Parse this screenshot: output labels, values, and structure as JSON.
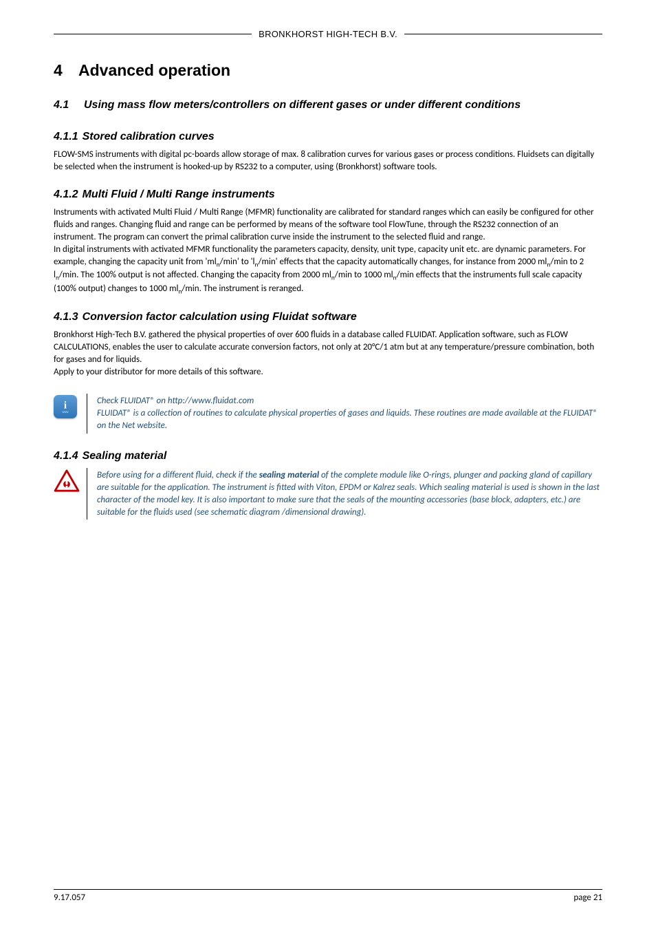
{
  "header": {
    "company": "BRONKHORST HIGH-TECH B.V."
  },
  "chapter": {
    "num": "4",
    "title": "Advanced operation"
  },
  "sec_4_1": {
    "num": "4.1",
    "title": "Using mass flow meters/controllers on different gases or under different conditions"
  },
  "sec_4_1_1": {
    "num": "4.1.1",
    "title": "Stored calibration curves",
    "body": "FLOW-SMS instruments with digital pc-boards allow storage of max. 8 calibration curves for various gases or process conditions. Fluidsets can digitally be selected when the instrument is hooked-up by RS232 to a computer, using (Bronkhorst) software tools."
  },
  "sec_4_1_2": {
    "num": "4.1.2",
    "title": "Multi Fluid / Multi Range instruments",
    "body": "Instruments with activated Multi Fluid / Multi Range (MFMR) functionality are calibrated for standard ranges which can easily be configured for other fluids and ranges. Changing fluid and range can be performed by means of the software tool FlowTune, through the RS232 connection of an instrument. The program can convert the primal calibration curve inside the instrument to the selected fluid and range.\nIn digital instruments with activated MFMR functionality the parameters capacity, density, unit type, capacity unit etc. are dynamic parameters. For example, changing the capacity unit from 'ml{n}/min' to 'l{n}/min' effects that the capacity automatically changes, for instance from 2000 ml{n}/min to 2 l{n}/min. The 100% output is not affected. Changing the capacity from 2000 ml{n}/min to 1000 ml{n}/min effects that the instruments full scale capacity (100% output) changes to 1000 ml{n}/min. The instrument is reranged."
  },
  "sec_4_1_3": {
    "num": "4.1.3",
    "title": "Conversion factor calculation using Fluidat software",
    "body": "Bronkhorst High-Tech B.V. gathered the physical properties of over 600 fluids in a database called FLUIDAT. Application software, such as FLOW CALCULATIONS, enables the user to calculate accurate conversion factors, not only at 20°C/1 atm but at any temperature/pressure combination, both for gases and for liquids.\nApply to your distributor for more details of this software.",
    "callout": "Check FLUIDAT®  on http://www.fluidat.com\nFLUIDAT® is a collection of routines to calculate physical properties of gases and liquids. These routines are made available at the FLUIDAT® on the Net website."
  },
  "sec_4_1_4": {
    "num": "4.1.4",
    "title": "Sealing material",
    "callout_prefix": "Before using for a different fluid, check if the ",
    "callout_bold": "sealing material",
    "callout_suffix": " of the complete module like O-rings, plunger and packing gland of capillary are suitable for the application. The instrument is fitted with Viton, EPDM or Kalrez seals. Which sealing material is used is shown in the last character of the model key. It is also important to make sure that the seals of the mounting accessories (base block, adapters, etc.) are suitable for the fluids used (see schematic diagram /dimensional drawing)."
  },
  "footer": {
    "doc": "9.17.057",
    "page": "page 21"
  },
  "colors": {
    "callout_text": "#1f4e79",
    "info_icon_bg_top": "#5b9bd5",
    "info_icon_bg_bottom": "#2e75b6",
    "warn_fill": "#ffffff",
    "warn_stroke": "#c00000"
  },
  "fonts": {
    "heading_family": "Arial",
    "body_family": "Calibri",
    "chapter_size_pt": 17,
    "section_size_pt": 12,
    "body_size_pt": 10
  }
}
